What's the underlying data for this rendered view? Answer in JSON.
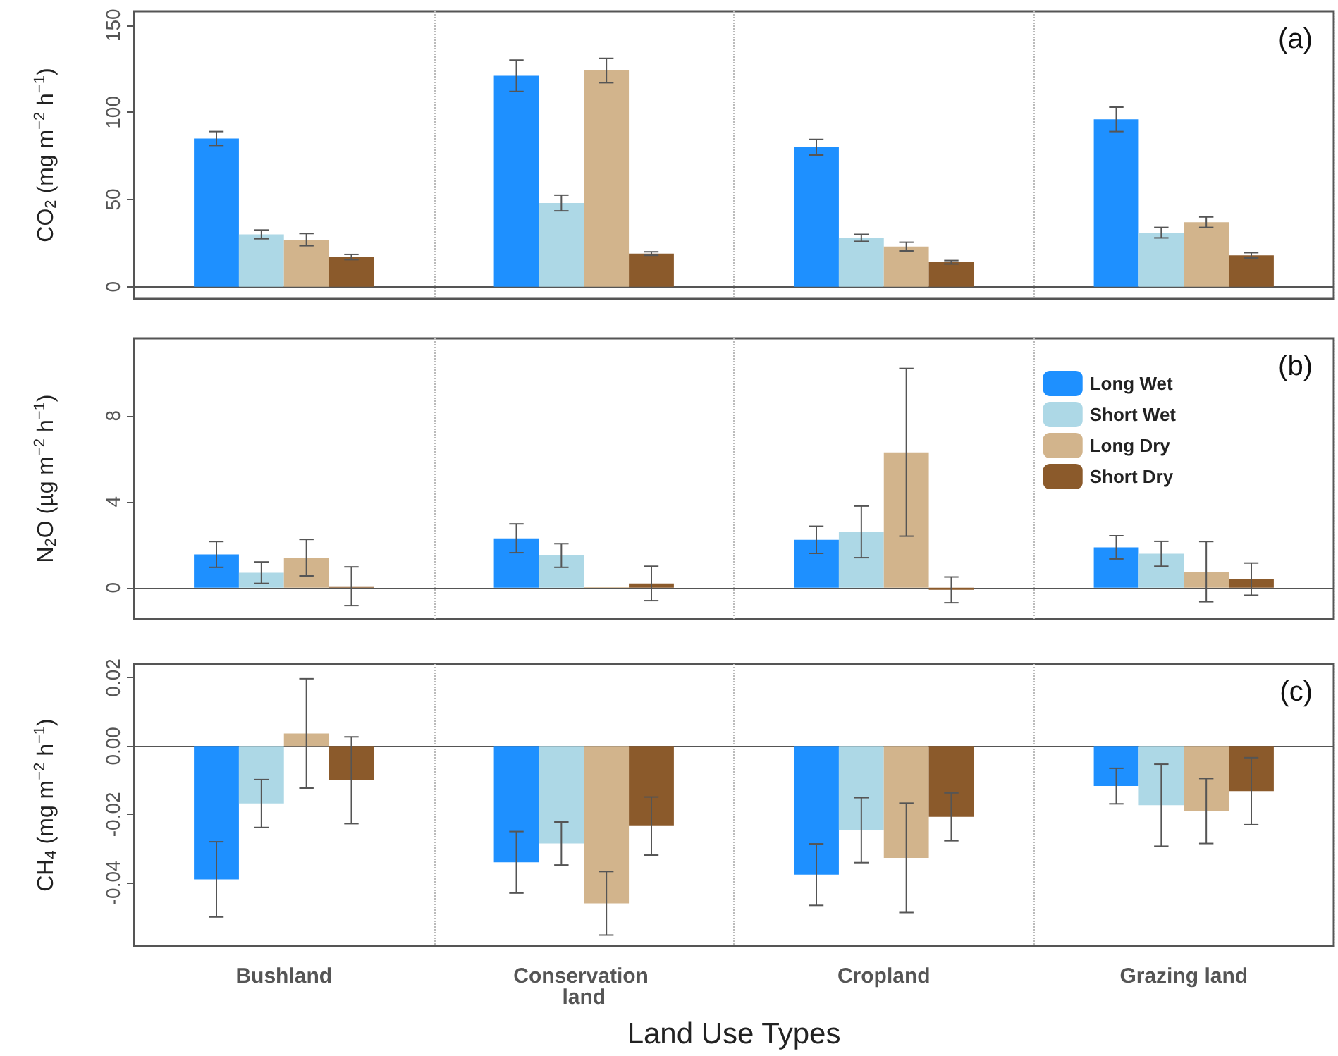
{
  "chart_data": [
    {
      "type": "bar",
      "ylabel": "CO$_{2}$ (mg m$^{−2}$ h$^{−1}$)",
      "annotations": [
        "(a)"
      ],
      "categories": [
        "Bushland",
        "Conservation land",
        "Cropland",
        "Grazing land"
      ],
      "ylim": [
        -7,
        158
      ],
      "yticks": [
        0,
        50,
        100,
        150
      ],
      "grid": "x",
      "tick_labels": "y",
      "legend": false,
      "series": [
        {
          "color": "#1e90ff",
          "values": [
            85,
            121,
            80,
            96
          ],
          "errors": [
            4,
            9,
            4.5,
            7
          ]
        },
        {
          "color": "#add8e6",
          "values": [
            30,
            48,
            28,
            31
          ],
          "errors": [
            2.5,
            4.5,
            2,
            3
          ]
        },
        {
          "color": "#d2b48c",
          "values": [
            27,
            124,
            23,
            37
          ],
          "errors": [
            3.5,
            7,
            2.5,
            3
          ]
        },
        {
          "color": "#8b5a2b",
          "values": [
            17,
            19,
            14,
            18
          ],
          "errors": [
            1.5,
            1,
            1,
            1.5
          ]
        }
      ]
    },
    {
      "type": "bar",
      "ylabel": "N$_{2}$O (µg m$^{−2}$ h$^{−1}$)",
      "annotations": [
        "(b)"
      ],
      "categories": [
        "Bushland",
        "Conservation land",
        "Cropland",
        "Grazing land"
      ],
      "ylim": [
        -1.45,
        11.6
      ],
      "yticks": [
        0,
        4,
        8
      ],
      "grid": "x",
      "tick_labels": "y",
      "legend": "top right",
      "series": [
        {
          "name": "Long Wet",
          "color": "#1e90ff",
          "values": [
            1.55,
            2.3,
            2.23,
            1.88
          ],
          "errors": [
            0.6,
            0.67,
            0.63,
            0.54
          ]
        },
        {
          "name": "Short Wet",
          "color": "#add8e6",
          "values": [
            0.7,
            1.5,
            2.6,
            1.58
          ],
          "errors": [
            0.5,
            0.55,
            1.2,
            0.58
          ]
        },
        {
          "name": "Long Dry",
          "color": "#d2b48c",
          "values": [
            1.4,
            0.05,
            6.3,
            0.75
          ],
          "errors": [
            0.85,
            null,
            3.9,
            1.4
          ]
        },
        {
          "name": "Short Dry",
          "color": "#8b5a2b",
          "values": [
            0.07,
            0.2,
            -0.1,
            0.4
          ],
          "errors": [
            0.9,
            0.8,
            0.6,
            0.75
          ]
        }
      ]
    },
    {
      "type": "bar",
      "ylabel": "CH$_{4}$ (mg m$^{−2}$ h$^{−1}$)",
      "xlabel": "Land Use Types",
      "annotations": [
        "(c)"
      ],
      "categories": [
        "Bushland",
        "Conservation land",
        "Cropland",
        "Grazing land"
      ],
      "ylim": [
        -0.0585,
        0.024
      ],
      "yticks": [
        0.02,
        {
          "value": 0,
          "label": "0.00"
        },
        -0.02,
        -0.04
      ],
      "grid": "x",
      "legend": false,
      "series": [
        {
          "color": "#1e90ff",
          "values": [
            -0.039,
            -0.034,
            -0.0376,
            -0.0117
          ],
          "errors": [
            0.011,
            0.009,
            0.009,
            0.0052
          ]
        },
        {
          "color": "#add8e6",
          "values": [
            -0.0168,
            -0.0285,
            -0.0246,
            -0.0173
          ],
          "errors": [
            0.007,
            0.0063,
            0.0095,
            0.012
          ]
        },
        {
          "color": "#d2b48c",
          "values": [
            0.0037,
            -0.046,
            -0.0327,
            -0.019
          ],
          "errors": [
            0.016,
            0.0093,
            0.016,
            0.0095
          ]
        },
        {
          "color": "#8b5a2b",
          "values": [
            -0.01,
            -0.0234,
            -0.0207,
            -0.0132
          ],
          "errors": [
            0.0127,
            0.0085,
            0.007,
            0.0098
          ]
        }
      ]
    }
  ]
}
